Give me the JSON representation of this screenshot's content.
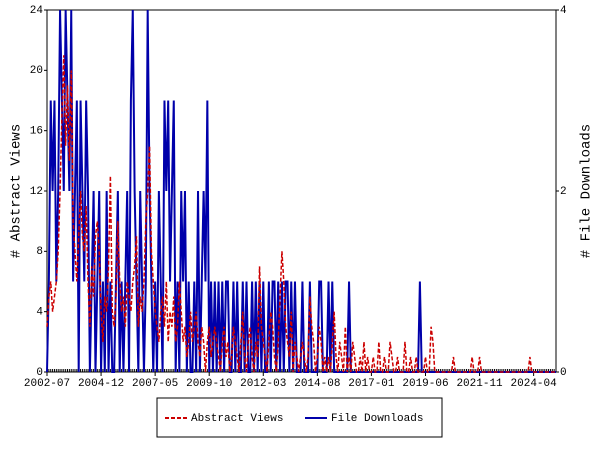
{
  "chart_data": {
    "type": "line",
    "x": [
      "2002-07",
      "2002-08",
      "2002-09",
      "2002-10",
      "2002-11",
      "2002-12",
      "2003-01",
      "2003-02",
      "2003-03",
      "2003-04",
      "2003-05",
      "2003-06",
      "2003-07",
      "2003-08",
      "2003-09",
      "2003-10",
      "2003-11",
      "2003-12",
      "2004-01",
      "2004-02",
      "2004-03",
      "2004-04",
      "2004-05",
      "2004-06",
      "2004-07",
      "2004-08",
      "2004-09",
      "2004-10",
      "2004-11",
      "2004-12",
      "2005-01",
      "2005-02",
      "2005-03",
      "2005-04",
      "2005-05",
      "2005-06",
      "2005-07",
      "2005-08",
      "2005-09",
      "2005-10",
      "2005-11",
      "2005-12",
      "2006-01",
      "2006-02",
      "2006-03",
      "2006-04",
      "2006-05",
      "2006-06",
      "2006-07",
      "2006-08",
      "2006-09",
      "2006-10",
      "2006-11",
      "2006-12",
      "2007-01",
      "2007-02",
      "2007-03",
      "2007-04",
      "2007-05",
      "2007-06",
      "2007-07",
      "2007-08",
      "2007-09",
      "2007-10",
      "2007-11",
      "2007-12",
      "2008-01",
      "2008-02",
      "2008-03",
      "2008-04",
      "2008-05",
      "2008-06",
      "2008-07",
      "2008-08",
      "2008-09",
      "2008-10",
      "2008-11",
      "2008-12",
      "2009-01",
      "2009-02",
      "2009-03",
      "2009-04",
      "2009-05",
      "2009-06",
      "2009-07",
      "2009-08",
      "2009-09",
      "2009-10",
      "2009-11",
      "2009-12",
      "2010-01",
      "2010-02",
      "2010-03",
      "2010-04",
      "2010-05",
      "2010-06",
      "2010-07",
      "2010-08",
      "2010-09",
      "2010-10",
      "2010-11",
      "2010-12",
      "2011-01",
      "2011-02",
      "2011-03",
      "2011-04",
      "2011-05",
      "2011-06",
      "2011-07",
      "2011-08",
      "2011-09",
      "2011-10",
      "2011-11",
      "2011-12",
      "2012-01",
      "2012-02",
      "2012-03",
      "2012-04",
      "2012-05",
      "2012-06",
      "2012-07",
      "2012-08",
      "2012-09",
      "2012-10",
      "2012-11",
      "2012-12",
      "2013-01",
      "2013-02",
      "2013-03",
      "2013-04",
      "2013-05",
      "2013-06",
      "2013-07",
      "2013-08",
      "2013-09",
      "2013-10",
      "2013-11",
      "2013-12",
      "2014-01",
      "2014-02",
      "2014-03",
      "2014-04",
      "2014-05",
      "2014-06",
      "2014-07",
      "2014-08",
      "2014-09",
      "2014-10",
      "2014-11",
      "2014-12",
      "2015-01",
      "2015-02",
      "2015-03",
      "2015-04",
      "2015-05",
      "2015-06",
      "2015-07",
      "2015-08",
      "2015-09",
      "2015-10",
      "2015-11",
      "2015-12",
      "2016-01",
      "2016-02",
      "2016-03",
      "2016-04",
      "2016-05",
      "2016-06",
      "2016-07",
      "2016-08",
      "2016-09",
      "2016-10",
      "2016-11",
      "2016-12",
      "2017-01",
      "2017-02",
      "2017-03",
      "2017-04",
      "2017-05",
      "2017-06",
      "2017-07",
      "2017-08",
      "2017-09",
      "2017-10",
      "2017-11",
      "2017-12",
      "2018-01",
      "2018-02",
      "2018-03",
      "2018-04",
      "2018-05",
      "2018-06",
      "2018-07",
      "2018-08",
      "2018-09",
      "2018-10",
      "2018-11",
      "2018-12",
      "2019-01",
      "2019-02",
      "2019-03",
      "2019-04",
      "2019-05",
      "2019-06",
      "2019-07",
      "2019-08",
      "2019-09",
      "2019-10",
      "2019-11",
      "2019-12",
      "2020-01",
      "2020-02",
      "2020-03",
      "2020-04",
      "2020-05",
      "2020-06",
      "2020-07",
      "2020-08",
      "2020-09",
      "2020-10",
      "2020-11",
      "2020-12",
      "2021-01",
      "2021-02",
      "2021-03",
      "2021-04",
      "2021-05",
      "2021-06",
      "2021-07",
      "2021-08",
      "2021-09",
      "2021-10",
      "2021-11",
      "2021-12",
      "2022-01",
      "2022-02",
      "2022-03",
      "2022-04",
      "2022-05",
      "2022-06",
      "2022-07",
      "2022-08",
      "2022-09",
      "2022-10",
      "2022-11",
      "2022-12",
      "2023-01",
      "2023-02",
      "2023-03",
      "2023-04",
      "2023-05",
      "2023-06",
      "2023-07",
      "2023-08",
      "2023-09",
      "2023-10",
      "2023-11",
      "2023-12",
      "2024-01",
      "2024-02",
      "2024-03",
      "2024-04",
      "2024-05",
      "2024-06",
      "2024-07",
      "2024-08",
      "2024-09",
      "2024-10",
      "2024-11",
      "2024-12",
      "2025-01",
      "2025-02",
      "2025-03",
      "2025-04"
    ],
    "series": [
      {
        "name": "Abstract Views",
        "color": "#cc0000",
        "dash": true,
        "axis": "y",
        "values": [
          3,
          5,
          6,
          4,
          5,
          6,
          8,
          12,
          17,
          21,
          15,
          19,
          14,
          20,
          10,
          8,
          6,
          9,
          12,
          9,
          8,
          11,
          6,
          3,
          7,
          5,
          9,
          10,
          8,
          4,
          2,
          5,
          4,
          7,
          13,
          4,
          3,
          5,
          10,
          6,
          4,
          5,
          3,
          6,
          5,
          4,
          6,
          7,
          9,
          3,
          5,
          4,
          6,
          10,
          12,
          15,
          8,
          6,
          4,
          3,
          2,
          4,
          5,
          3,
          6,
          2,
          4,
          3,
          5,
          2,
          3,
          6,
          4,
          2,
          3,
          1,
          2,
          4,
          2,
          3,
          4,
          2,
          1,
          3,
          2,
          0,
          2,
          3,
          1,
          2,
          3,
          2,
          1,
          0,
          2,
          3,
          1,
          2,
          0,
          1,
          3,
          2,
          1,
          0,
          2,
          4,
          1,
          0,
          2,
          3,
          1,
          0,
          2,
          1,
          7,
          3,
          2,
          1,
          0,
          2,
          4,
          3,
          1,
          0,
          2,
          5,
          8,
          6,
          3,
          2,
          1,
          4,
          0,
          2,
          1,
          0,
          1,
          2,
          1,
          0,
          1,
          5,
          3,
          2,
          0,
          1,
          3,
          2,
          0,
          1,
          0,
          1,
          0,
          2,
          4,
          1,
          0,
          2,
          1,
          0,
          3,
          0,
          1,
          0,
          2,
          1,
          0,
          0,
          1,
          0,
          2,
          0,
          1,
          0,
          0,
          1,
          0,
          0,
          2,
          0,
          0,
          1,
          0,
          0,
          2,
          1,
          0,
          0,
          1,
          0,
          0,
          0,
          2,
          0,
          0,
          1,
          0,
          0,
          1,
          0,
          0,
          0,
          0,
          1,
          0,
          0,
          3,
          2,
          0,
          0,
          0,
          0,
          0,
          0,
          0,
          0,
          0,
          0,
          1,
          0,
          0,
          0,
          0,
          0,
          0,
          0,
          0,
          0,
          1,
          0,
          0,
          0,
          1,
          0,
          0,
          0,
          0,
          0,
          0,
          0,
          0,
          0,
          0,
          0,
          0,
          0,
          0,
          0,
          0,
          0,
          0,
          0,
          0,
          0,
          0,
          0,
          0,
          0,
          0,
          1,
          0,
          0,
          0,
          0,
          0,
          0,
          0,
          0,
          0,
          0,
          0,
          0,
          0,
          0
        ]
      },
      {
        "name": "File Downloads",
        "color": "#0000aa",
        "dash": false,
        "axis": "y2",
        "values": [
          0,
          1,
          3,
          2,
          3,
          1,
          2,
          4,
          3,
          2,
          4,
          3,
          2,
          4,
          1,
          2,
          3,
          0,
          3,
          2,
          1,
          3,
          2,
          0,
          1,
          2,
          0,
          1,
          2,
          0,
          1,
          0,
          2,
          0,
          1,
          0,
          0,
          1,
          2,
          0,
          1,
          0,
          1,
          2,
          0,
          3,
          4,
          2,
          1,
          0,
          2,
          1,
          0,
          1,
          4,
          2,
          1,
          0,
          1,
          0,
          2,
          1,
          0,
          3,
          2,
          3,
          1,
          2,
          3,
          0,
          1,
          0,
          2,
          1,
          2,
          0,
          1,
          0,
          0,
          1,
          0,
          2,
          0,
          1,
          2,
          1,
          3,
          0,
          1,
          0,
          1,
          0,
          1,
          0,
          1,
          0,
          1,
          1,
          0,
          0,
          1,
          0,
          1,
          0,
          0,
          1,
          0,
          1,
          0,
          0,
          1,
          0,
          1,
          0,
          1,
          0,
          1,
          0,
          0,
          1,
          0,
          1,
          1,
          0,
          1,
          0,
          1,
          0,
          1,
          1,
          0,
          1,
          0,
          1,
          0,
          0,
          0,
          1,
          0,
          0,
          0,
          1,
          0,
          0,
          0,
          0,
          1,
          1,
          0,
          0,
          0,
          1,
          0,
          1,
          0,
          0,
          0,
          0,
          0,
          0,
          0,
          0,
          1,
          0,
          0,
          0,
          0,
          0,
          0,
          0,
          0,
          0,
          0,
          0,
          0,
          0,
          0,
          0,
          0,
          0,
          0,
          0,
          0,
          0,
          0,
          0,
          0,
          0,
          0,
          0,
          0,
          0,
          0,
          0,
          0,
          0,
          0,
          0,
          0,
          0,
          1,
          0,
          0,
          0,
          0,
          0,
          0,
          0,
          0,
          0,
          0,
          0,
          0,
          0,
          0,
          0,
          0,
          0,
          0,
          0,
          0,
          0,
          0,
          0,
          0,
          0,
          0,
          0,
          0,
          0,
          0,
          0,
          0,
          0,
          0,
          0,
          0,
          0,
          0,
          0,
          0,
          0,
          0,
          0,
          0,
          0,
          0,
          0,
          0,
          0,
          0,
          0,
          0,
          0,
          0,
          0,
          0,
          0,
          0,
          0,
          0,
          0,
          0,
          0,
          0,
          0,
          0,
          0,
          0,
          0,
          0,
          0,
          0,
          0
        ]
      }
    ],
    "xticks": [
      "2002-07",
      "2004-12",
      "2007-05",
      "2009-10",
      "2012-03",
      "2014-08",
      "2017-01",
      "2019-06",
      "2021-11",
      "2024-04"
    ],
    "ylabel": "# Abstract Views",
    "y2label": "# File Downloads",
    "ylim": [
      0,
      24
    ],
    "yticks": [
      0,
      4,
      8,
      12,
      16,
      20,
      24
    ],
    "y2lim": [
      0,
      4
    ],
    "y2ticks": [
      0,
      2,
      4
    ],
    "legend": "bottom"
  }
}
